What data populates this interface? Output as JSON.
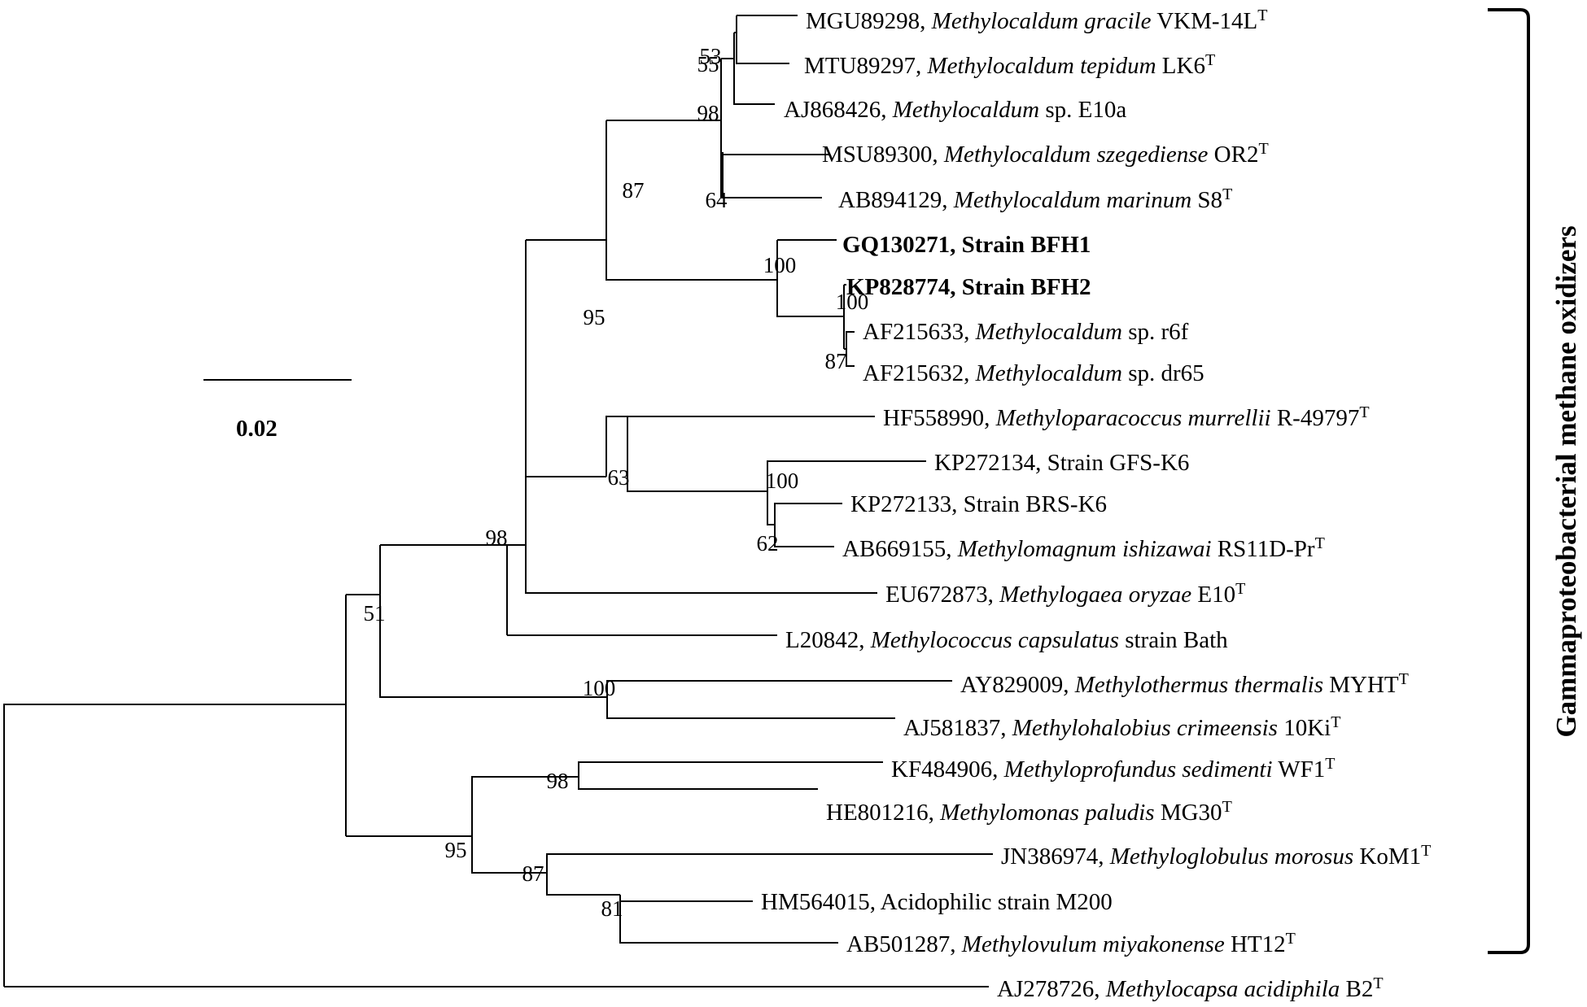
{
  "scale_bar": {
    "label": "0.02"
  },
  "bracket": {
    "label": "Gammaproteobacterial  methane oxidizers"
  },
  "taxa": [
    {
      "accession": "MGU89298,",
      "genus_species": "Methylocaldum gracile",
      "strain": "VKM-14L",
      "sup": "T",
      "bold": false
    },
    {
      "accession": "MTU89297,",
      "genus_species": "Methylocaldum tepidum",
      "strain": "LK6",
      "sup": "T",
      "bold": false
    },
    {
      "accession": "AJ868426,",
      "genus_species": "Methylocaldum",
      "strain": "sp. E10a",
      "sup": "",
      "bold": false
    },
    {
      "accession": "MSU89300,",
      "genus_species": "Methylocaldum szegediense",
      "strain": "OR2",
      "sup": "T",
      "bold": false
    },
    {
      "accession": "AB894129,",
      "genus_species": "Methylocaldum marinum",
      "strain": "S8",
      "sup": "T",
      "bold": false
    },
    {
      "accession": "GQ130271,",
      "genus_species": "",
      "strain": "Strain BFH1",
      "sup": "",
      "bold": true
    },
    {
      "accession": "KP828774,",
      "genus_species": "",
      "strain": "Strain BFH2",
      "sup": "",
      "bold": true
    },
    {
      "accession": "AF215633,",
      "genus_species": "Methylocaldum",
      "strain": "sp. r6f",
      "sup": "",
      "bold": false
    },
    {
      "accession": "AF215632,",
      "genus_species": "Methylocaldum",
      "strain": "sp. dr65",
      "sup": "",
      "bold": false
    },
    {
      "accession": "HF558990,",
      "genus_species": "Methyloparacoccus murrellii",
      "strain": "R-49797",
      "sup": "T",
      "bold": false
    },
    {
      "accession": "KP272134,",
      "genus_species": "",
      "strain": "Strain GFS-K6",
      "sup": "",
      "bold": false
    },
    {
      "accession": "KP272133,",
      "genus_species": "",
      "strain": "Strain BRS-K6",
      "sup": "",
      "bold": false
    },
    {
      "accession": "AB669155,",
      "genus_species": "Methylomagnum ishizawai",
      "strain": "RS11D-Pr",
      "sup": "T",
      "bold": false
    },
    {
      "accession": "EU672873,",
      "genus_species": "Methylogaea oryzae",
      "strain": "E10",
      "sup": "T",
      "bold": false
    },
    {
      "accession": "L20842,",
      "genus_species": "Methylococcus capsulatus",
      "strain": "strain Bath",
      "sup": "",
      "bold": false
    },
    {
      "accession": "AY829009,",
      "genus_species": "Methylothermus thermalis",
      "strain": "MYHT",
      "sup": "T",
      "bold": false
    },
    {
      "accession": "AJ581837,",
      "genus_species": "Methylohalobius crimeensis",
      "strain": "10Ki",
      "sup": "T",
      "bold": false
    },
    {
      "accession": "KF484906,",
      "genus_species": "Methyloprofundus sedimenti",
      "strain": "WF1",
      "sup": "T",
      "bold": false
    },
    {
      "accession": "HE801216,",
      "genus_species": "Methylomonas paludis",
      "strain": "MG30",
      "sup": "T",
      "bold": false
    },
    {
      "accession": "JN386974,",
      "genus_species": "Methyloglobulus morosus",
      "strain": "KoM1",
      "sup": "T",
      "bold": false
    },
    {
      "accession": "HM564015,",
      "genus_species": "",
      "strain": "Acidophilic  strain M200",
      "sup": "",
      "bold": false
    },
    {
      "accession": "AB501287,",
      "genus_species": "Methylovulum miyakonense",
      "strain": "HT12",
      "sup": "T",
      "bold": false
    },
    {
      "accession": "AJ278726,",
      "genus_species": "Methylocapsa acidiphila",
      "strain": "B2",
      "sup": "T",
      "bold": false
    }
  ],
  "bootstrap": [
    {
      "id": "n_gracile_tepidum",
      "value": "53"
    },
    {
      "id": "n_gracile_tepidum_e10a",
      "value": "55"
    },
    {
      "id": "n_methylocaldum_a",
      "value": "98"
    },
    {
      "id": "n_szeg_marinum",
      "value": "64"
    },
    {
      "id": "n_methylocaldum_all",
      "value": "87"
    },
    {
      "id": "n_bfh",
      "value": "100"
    },
    {
      "id": "n_bfh2_r6f",
      "value": "100"
    },
    {
      "id": "n_r6f_dr65",
      "value": "87"
    },
    {
      "id": "n_cluster_95",
      "value": "95"
    },
    {
      "id": "n_para_group",
      "value": "63"
    },
    {
      "id": "n_gfs_group",
      "value": "100"
    },
    {
      "id": "n_brs_ab669",
      "value": "62"
    },
    {
      "id": "n_cluster_98",
      "value": "98"
    },
    {
      "id": "n_root_51",
      "value": "51"
    },
    {
      "id": "n_thermus",
      "value": "100"
    },
    {
      "id": "n_lower_95",
      "value": "95"
    },
    {
      "id": "n_profundus",
      "value": "98"
    },
    {
      "id": "n_globulus",
      "value": "87"
    },
    {
      "id": "n_m200",
      "value": "81"
    }
  ]
}
